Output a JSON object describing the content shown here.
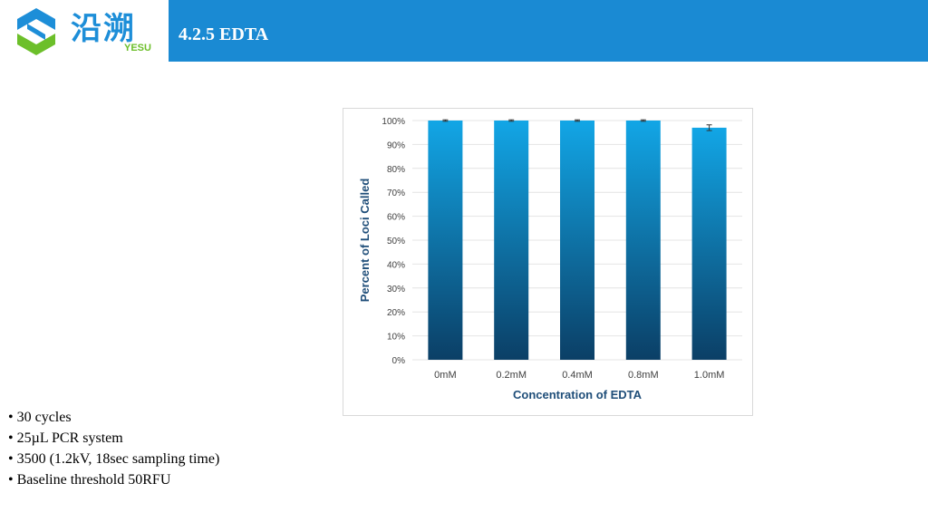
{
  "logo": {
    "chinese_text": "沿溯",
    "english_text": "YESU"
  },
  "header": {
    "title": "4.2.5 EDTA"
  },
  "bullets": [
    "• 30 cycles",
    "• 25µL PCR system",
    "• 3500 (1.2kV, 18sec sampling time)",
    "• Baseline threshold 50RFU"
  ],
  "colors": {
    "header": "#1a8ad3",
    "bar_top": "#12a6e6",
    "bar_bottom": "#0b3f66",
    "logo_blue": "#1d8ed8",
    "logo_green": "#6cbf2a"
  },
  "chart_data": {
    "type": "bar",
    "categories": [
      "0mM",
      "0.2mM",
      "0.4mM",
      "0.8mM",
      "1.0mM"
    ],
    "values": [
      100,
      100,
      100,
      100,
      97
    ],
    "error_bars": [
      0.3,
      0.3,
      0.3,
      0.3,
      1.2
    ],
    "xlabel": "Concentration of  EDTA",
    "ylabel": "Percent of Loci Called",
    "ylim": [
      0,
      100
    ],
    "yticks": [
      "0%",
      "10%",
      "20%",
      "30%",
      "40%",
      "50%",
      "60%",
      "70%",
      "80%",
      "90%",
      "100%"
    ],
    "grid": true,
    "legend": "none"
  }
}
